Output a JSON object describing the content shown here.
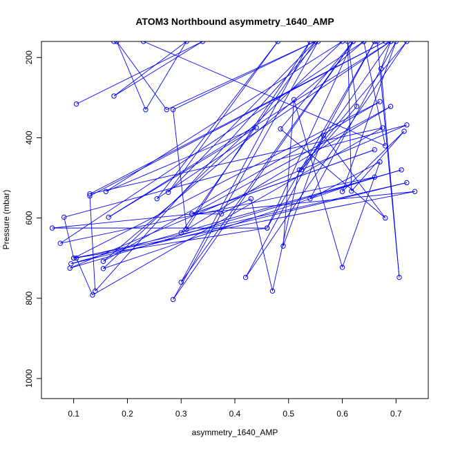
{
  "chart_data": {
    "type": "line",
    "title": "ATOM3 Northbound asymmetry_1640_AMP",
    "xlabel": "asymmetry_1640_AMP",
    "ylabel": "Pressure (mbar)",
    "xlim": [
      0.04,
      0.76
    ],
    "ylim": [
      1050,
      160
    ],
    "y_reversed": true,
    "x_ticks": [
      0.1,
      0.2,
      0.3,
      0.4,
      0.5,
      0.6,
      0.7
    ],
    "x_tick_labels": [
      "0.1",
      "0.2",
      "0.3",
      "0.4",
      "0.5",
      "0.6",
      "0.7"
    ],
    "y_ticks": [
      200,
      400,
      600,
      800,
      1000
    ],
    "y_tick_labels": [
      "200",
      "400",
      "600",
      "800",
      "1000"
    ],
    "grid": false,
    "legend": "none",
    "series_color": "#0000ff",
    "series": [
      {
        "points": [
          [
            0.105,
            316
          ],
          [
            0.34,
            160
          ],
          [
            0.175,
            296
          ],
          [
            0.31,
            160
          ],
          [
            0.234,
            330
          ],
          [
            0.18,
            160
          ],
          [
            0.273,
            330
          ],
          [
            0.55,
            160
          ],
          [
            0.285,
            330
          ],
          [
            0.31,
            628
          ],
          [
            0.54,
            160
          ],
          [
            0.3,
            760
          ],
          [
            0.62,
            160
          ],
          [
            0.285,
            803
          ],
          [
            0.555,
            160
          ],
          [
            0.14,
            782
          ],
          [
            0.13,
            545
          ],
          [
            0.68,
            160
          ],
          [
            0.13,
            540
          ],
          [
            0.675,
            375
          ],
          [
            0.135,
            792
          ],
          [
            0.105,
            700
          ],
          [
            0.72,
            512
          ],
          [
            0.095,
            714
          ],
          [
            0.71,
            480
          ],
          [
            0.093,
            725
          ],
          [
            0.72,
            368
          ],
          [
            0.082,
            598
          ],
          [
            0.1,
            700
          ],
          [
            0.735,
            534
          ],
          [
            0.06,
            625
          ],
          [
            0.46,
            625
          ],
          [
            0.1,
            700
          ],
          [
            0.67,
            310
          ],
          [
            0.155,
            708
          ],
          [
            0.64,
            160
          ],
          [
            0.075,
            663
          ],
          [
            0.66,
            498
          ],
          [
            0.155,
            726
          ],
          [
            0.6,
            160
          ],
          [
            0.16,
            534
          ],
          [
            0.44,
            375
          ],
          [
            0.165,
            598
          ],
          [
            0.69,
            160
          ],
          [
            0.255,
            552
          ],
          [
            0.48,
            160
          ],
          [
            0.276,
            536
          ],
          [
            0.55,
            160
          ],
          [
            0.3,
            637
          ],
          [
            0.69,
            322
          ],
          [
            0.32,
            590
          ],
          [
            0.66,
            430
          ],
          [
            0.32,
            590
          ],
          [
            0.375,
            590
          ],
          [
            0.43,
            552
          ],
          [
            0.47,
            782
          ],
          [
            0.52,
            480
          ],
          [
            0.72,
            160
          ],
          [
            0.42,
            748
          ],
          [
            0.66,
            160
          ],
          [
            0.46,
            625
          ],
          [
            0.62,
            160
          ],
          [
            0.485,
            378
          ],
          [
            0.68,
            600
          ],
          [
            0.565,
            394
          ],
          [
            0.49,
            670
          ],
          [
            0.51,
            305
          ],
          [
            0.6,
            723
          ],
          [
            0.67,
            460
          ],
          [
            0.54,
            552
          ],
          [
            0.7,
            160
          ],
          [
            0.6,
            534
          ],
          [
            0.715,
            384
          ],
          [
            0.617,
            533
          ],
          [
            0.61,
            160
          ],
          [
            0.627,
            322
          ],
          [
            0.524,
            480
          ],
          [
            0.69,
            160
          ],
          [
            0.672,
            228
          ],
          [
            0.706,
            748
          ],
          [
            0.665,
            160
          ],
          [
            0.64,
            160
          ],
          [
            0.68,
            420
          ],
          [
            0.23,
            160
          ],
          [
            0.175,
            160
          ]
        ]
      }
    ]
  }
}
